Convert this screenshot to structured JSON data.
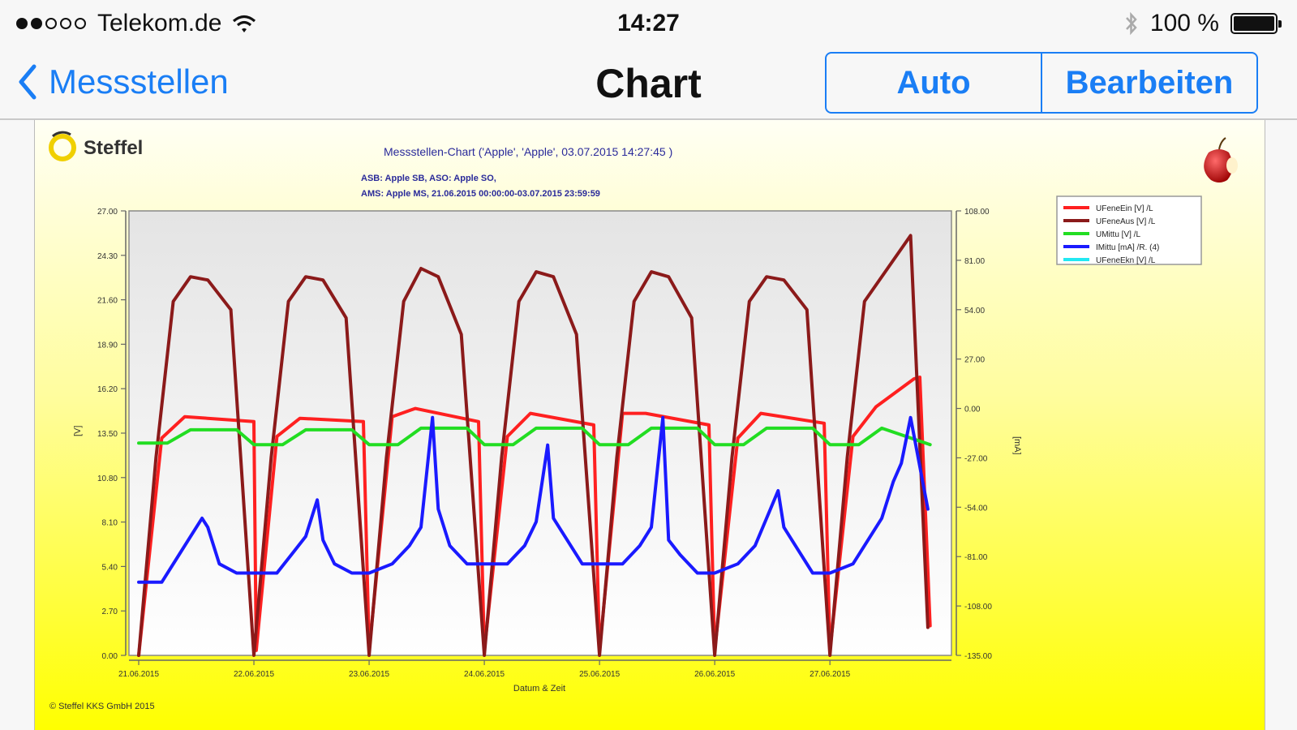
{
  "status_bar": {
    "carrier": "Telekom.de",
    "time": "14:27",
    "battery": "100 %",
    "signal_dots_filled": 2,
    "signal_dots_total": 5,
    "icons": [
      "wifi-icon",
      "bluetooth-icon",
      "battery-icon"
    ]
  },
  "nav": {
    "back_label": "Messstellen",
    "title": "Chart",
    "segments": [
      "Auto",
      "Bearbeiten"
    ],
    "accent": "#1a7ef5"
  },
  "report": {
    "logo": "Steffel",
    "title": "Messstellen-Chart ('Apple', 'Apple', 03.07.2015 14:27:45 )",
    "line1": "ASB: Apple SB, ASO: Apple SO,",
    "line2": "AMS: Apple MS, 21.06.2015 00:00:00-03.07.2015 23:59:59",
    "footer": "© Steffel KKS GmbH 2015",
    "x_axis_title": "Datum & Zeit",
    "left_axis_title": "[V]",
    "right_axis_title": "[mA]",
    "background_colors": [
      "#fffff4",
      "#ffff00"
    ]
  },
  "chart_data": {
    "type": "line",
    "title": "Messstellen-Chart ('Apple', 'Apple', 03.07.2015 14:27:45 )",
    "xlabel": "Datum & Zeit",
    "ylabel": "[V]",
    "y2label": "[mA]",
    "x_ticks": [
      "21.06.2015",
      "22.06.2015",
      "23.06.2015",
      "24.06.2015",
      "25.06.2015",
      "26.06.2015",
      "27.06.2015"
    ],
    "xlim": [
      0,
      6.9
    ],
    "ylim": [
      0,
      27
    ],
    "y_ticks": [
      "0.00",
      "2.70",
      "5.40",
      "8.10",
      "10.80",
      "13.50",
      "16.20",
      "18.90",
      "21.60",
      "24.30",
      "27.00"
    ],
    "y2lim": [
      -135,
      108
    ],
    "y2_ticks": [
      "-135.00",
      "-108.00",
      "-81.00",
      "-54.00",
      "-27.00",
      "0.00",
      "27.00",
      "54.00",
      "81.00",
      "108.00"
    ],
    "grid": false,
    "legend_position": "top-right",
    "series": [
      {
        "name": "UFeneEin [V] /L",
        "color": "#ff2020",
        "axis": "left",
        "x": [
          0,
          0.2,
          0.4,
          1.0,
          1.02,
          1.2,
          1.4,
          1.95,
          2.0,
          2.2,
          2.4,
          2.95,
          3.0,
          3.2,
          3.4,
          3.95,
          4.0,
          4.2,
          4.4,
          4.95,
          5.0,
          5.2,
          5.4,
          5.95,
          6.0,
          6.2,
          6.4,
          6.73,
          6.78,
          6.87
        ],
        "values": [
          0.0,
          13.2,
          14.5,
          14.2,
          0.3,
          13.3,
          14.4,
          14.2,
          0.3,
          14.5,
          15.0,
          14.2,
          0.3,
          13.3,
          14.7,
          14.0,
          0.3,
          14.7,
          14.7,
          14.0,
          0.3,
          13.2,
          14.7,
          14.1,
          0.3,
          13.3,
          15.1,
          16.8,
          16.9,
          1.8
        ]
      },
      {
        "name": "UFeneAus [V] /L",
        "color": "#8b1a1a",
        "axis": "left",
        "x": [
          0,
          0.15,
          0.3,
          0.45,
          0.6,
          0.8,
          1.0,
          1.15,
          1.3,
          1.45,
          1.6,
          1.8,
          2.0,
          2.15,
          2.3,
          2.45,
          2.6,
          2.8,
          3.0,
          3.15,
          3.3,
          3.45,
          3.6,
          3.8,
          4.0,
          4.15,
          4.3,
          4.45,
          4.6,
          4.8,
          5.0,
          5.15,
          5.3,
          5.45,
          5.6,
          5.8,
          6.0,
          6.15,
          6.3,
          6.5,
          6.7,
          6.85
        ],
        "values": [
          0.0,
          12.0,
          21.5,
          23.0,
          22.8,
          21.0,
          0.0,
          12.0,
          21.5,
          23.0,
          22.8,
          20.5,
          0.0,
          12.0,
          21.5,
          23.5,
          23.0,
          19.5,
          0.0,
          12.0,
          21.5,
          23.3,
          23.0,
          19.5,
          0.0,
          12.0,
          21.5,
          23.3,
          23.0,
          20.5,
          0.0,
          12.0,
          21.5,
          23.0,
          22.8,
          21.0,
          0.0,
          12.0,
          21.5,
          23.5,
          25.5,
          1.7
        ]
      },
      {
        "name": "UMittu [V] /L",
        "color": "#22dd22",
        "axis": "left",
        "x": [
          0,
          0.25,
          0.45,
          0.85,
          1.0,
          1.25,
          1.45,
          1.85,
          2.0,
          2.25,
          2.45,
          2.85,
          3.0,
          3.25,
          3.45,
          3.85,
          4.0,
          4.25,
          4.45,
          4.85,
          5.0,
          5.25,
          5.45,
          5.85,
          6.0,
          6.25,
          6.45,
          6.87
        ],
        "values": [
          12.9,
          12.9,
          13.7,
          13.7,
          12.8,
          12.8,
          13.7,
          13.7,
          12.8,
          12.8,
          13.8,
          13.8,
          12.8,
          12.8,
          13.8,
          13.8,
          12.8,
          12.8,
          13.8,
          13.8,
          12.8,
          12.8,
          13.8,
          13.8,
          12.8,
          12.8,
          13.8,
          12.8
        ]
      },
      {
        "name": "IMittu [mA] /R. (4)",
        "color": "#1a1aff",
        "axis": "right",
        "x": [
          0,
          0.2,
          0.35,
          0.45,
          0.55,
          0.6,
          0.7,
          0.85,
          1.0,
          1.2,
          1.35,
          1.45,
          1.55,
          1.6,
          1.7,
          1.85,
          2.0,
          2.2,
          2.35,
          2.45,
          2.55,
          2.6,
          2.7,
          2.85,
          3.0,
          3.2,
          3.35,
          3.45,
          3.55,
          3.6,
          3.7,
          3.85,
          4.0,
          4.2,
          4.35,
          4.45,
          4.55,
          4.6,
          4.7,
          4.85,
          5.0,
          5.2,
          5.35,
          5.45,
          5.55,
          5.6,
          5.7,
          5.85,
          6.0,
          6.2,
          6.35,
          6.45,
          6.55,
          6.62,
          6.7,
          6.85
        ],
        "values": [
          -95,
          -95,
          -80,
          -70,
          -60,
          -65,
          -85,
          -90,
          -90,
          -90,
          -78,
          -70,
          -50,
          -72,
          -85,
          -90,
          -90,
          -85,
          -75,
          -65,
          -5,
          -55,
          -75,
          -85,
          -85,
          -85,
          -75,
          -62,
          -20,
          -60,
          -70,
          -85,
          -85,
          -85,
          -75,
          -65,
          -5,
          -72,
          -80,
          -90,
          -90,
          -85,
          -75,
          -60,
          -45,
          -65,
          -75,
          -90,
          -90,
          -85,
          -70,
          -60,
          -40,
          -30,
          -5,
          -55
        ]
      },
      {
        "name": "UFeneEkn [V] /L",
        "color": "#22e8f2",
        "axis": "left",
        "x": [],
        "values": []
      }
    ]
  }
}
